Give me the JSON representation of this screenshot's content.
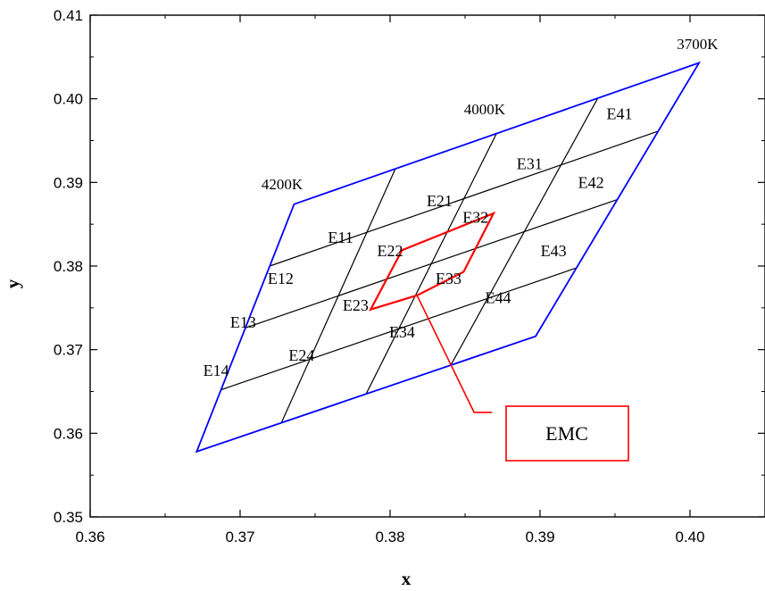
{
  "chart_data": {
    "type": "diagram-on-axes",
    "xlabel": "x",
    "ylabel": "y",
    "xlim": [
      0.36,
      0.405
    ],
    "ylim": [
      0.35,
      0.41
    ],
    "x_ticks": [
      {
        "value": 0.36,
        "label": "0.36"
      },
      {
        "value": 0.37,
        "label": "0.37"
      },
      {
        "value": 0.38,
        "label": "0.38"
      },
      {
        "value": 0.39,
        "label": "0.39"
      },
      {
        "value": 0.4,
        "label": "0.40"
      }
    ],
    "y_ticks": [
      {
        "value": 0.35,
        "label": "0.35"
      },
      {
        "value": 0.36,
        "label": "0.36"
      },
      {
        "value": 0.37,
        "label": "0.37"
      },
      {
        "value": 0.38,
        "label": "0.38"
      },
      {
        "value": 0.39,
        "label": "0.39"
      },
      {
        "value": 0.4,
        "label": "0.40"
      },
      {
        "value": 0.41,
        "label": "0.41"
      }
    ],
    "grid": false,
    "outline": {
      "color": "#0000ff",
      "corners": [
        [
          0.3736,
          0.3874
        ],
        [
          0.4006,
          0.4043
        ],
        [
          0.3897,
          0.3716
        ],
        [
          0.3671,
          0.3578
        ]
      ]
    },
    "grid_color": "#000000",
    "divisions": 4,
    "cells": [
      {
        "label": "E11",
        "x": 0.3767,
        "y": 0.3834
      },
      {
        "label": "E12",
        "x": 0.3727,
        "y": 0.3785
      },
      {
        "label": "E13",
        "x": 0.3702,
        "y": 0.3733
      },
      {
        "label": "E14",
        "x": 0.3684,
        "y": 0.3675
      },
      {
        "label": "E21",
        "x": 0.3833,
        "y": 0.3878
      },
      {
        "label": "E22",
        "x": 0.38,
        "y": 0.3818
      },
      {
        "label": "E23",
        "x": 0.3777,
        "y": 0.3753
      },
      {
        "label": "E24",
        "x": 0.3741,
        "y": 0.3693
      },
      {
        "label": "E31",
        "x": 0.3893,
        "y": 0.3922
      },
      {
        "label": "E32",
        "x": 0.3857,
        "y": 0.3858
      },
      {
        "label": "E33",
        "x": 0.3839,
        "y": 0.3785
      },
      {
        "label": "E34",
        "x": 0.3808,
        "y": 0.3721
      },
      {
        "label": "E41",
        "x": 0.3953,
        "y": 0.3982
      },
      {
        "label": "E42",
        "x": 0.3934,
        "y": 0.39
      },
      {
        "label": "E43",
        "x": 0.3909,
        "y": 0.3818
      },
      {
        "label": "E44",
        "x": 0.3872,
        "y": 0.3762
      }
    ],
    "cct_labels": [
      {
        "label": "4200K",
        "x": 0.3728,
        "y": 0.3898
      },
      {
        "label": "4000K",
        "x": 0.3863,
        "y": 0.3988
      },
      {
        "label": "3700K",
        "x": 0.4005,
        "y": 0.4066
      }
    ],
    "emc_region": {
      "color": "#ff0000",
      "polygon": [
        [
          0.3787,
          0.3748
        ],
        [
          0.3818,
          0.3765
        ],
        [
          0.3849,
          0.3793
        ],
        [
          0.3869,
          0.3863
        ],
        [
          0.3808,
          0.3819
        ]
      ],
      "leader": [
        [
          0.3818,
          0.3765
        ],
        [
          0.3856,
          0.3625
        ],
        [
          0.3868,
          0.3625
        ]
      ],
      "label": "EMC"
    }
  }
}
